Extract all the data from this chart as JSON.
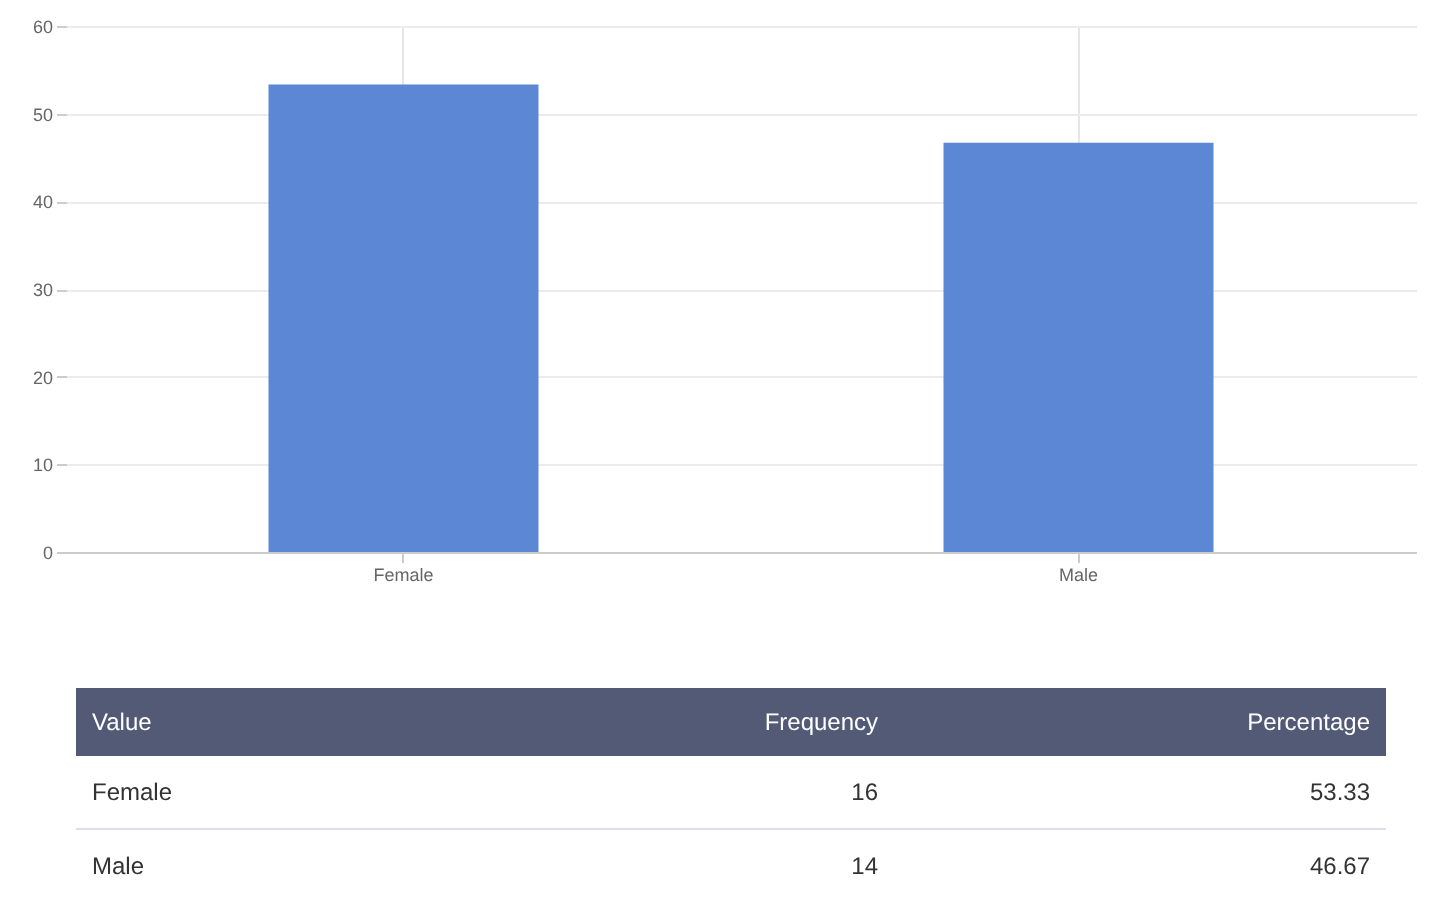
{
  "chart_data": [
    {
      "type": "bar",
      "categories": [
        "Female",
        "Male"
      ],
      "values": [
        53.33,
        46.67
      ],
      "color": "#5b87d4",
      "ylim": [
        0,
        60
      ],
      "yticks": [
        0,
        10,
        20,
        30,
        40,
        50,
        60
      ],
      "grid": true
    },
    {
      "type": "other",
      "xlabel": "Value",
      "categories": [
        "Female",
        "Male"
      ],
      "series": [
        {
          "name": "Frequency",
          "values": [
            16,
            14
          ]
        },
        {
          "name": "Percentage",
          "values": [
            53.33,
            46.67
          ]
        }
      ],
      "data_labels": true
    }
  ]
}
